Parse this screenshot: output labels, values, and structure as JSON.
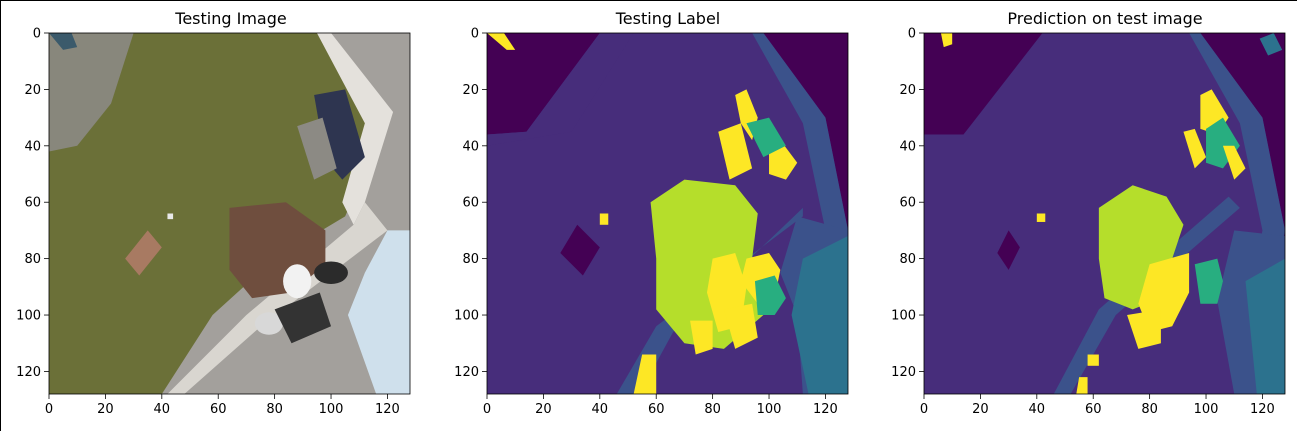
{
  "colors": {
    "purple_bg": "#440154",
    "indigo": "#472d7b",
    "blue": "#3b528b",
    "teal_blue": "#2c728e",
    "green": "#28ae80",
    "yellow_green": "#b5de2b",
    "yellow": "#fde725"
  },
  "chart_data": [
    {
      "type": "image",
      "title": "Testing Image",
      "xticks": [
        0,
        20,
        40,
        60,
        80,
        100,
        120
      ],
      "yticks": [
        0,
        20,
        40,
        60,
        80,
        100,
        120
      ],
      "xlim": [
        0,
        128
      ],
      "ylim": [
        128,
        0
      ]
    },
    {
      "type": "heatmap",
      "title": "Testing Label",
      "colormap": "viridis",
      "xticks": [
        0,
        20,
        40,
        60,
        80,
        100,
        120
      ],
      "yticks": [
        0,
        20,
        40,
        60,
        80,
        100,
        120
      ],
      "xlim": [
        0,
        128
      ],
      "ylim": [
        128,
        0
      ]
    },
    {
      "type": "heatmap",
      "title": "Prediction on test image",
      "colormap": "viridis",
      "xticks": [
        0,
        20,
        40,
        60,
        80,
        100,
        120
      ],
      "yticks": [
        0,
        20,
        40,
        60,
        80,
        100,
        120
      ],
      "xlim": [
        0,
        128
      ],
      "ylim": [
        128,
        0
      ]
    }
  ]
}
